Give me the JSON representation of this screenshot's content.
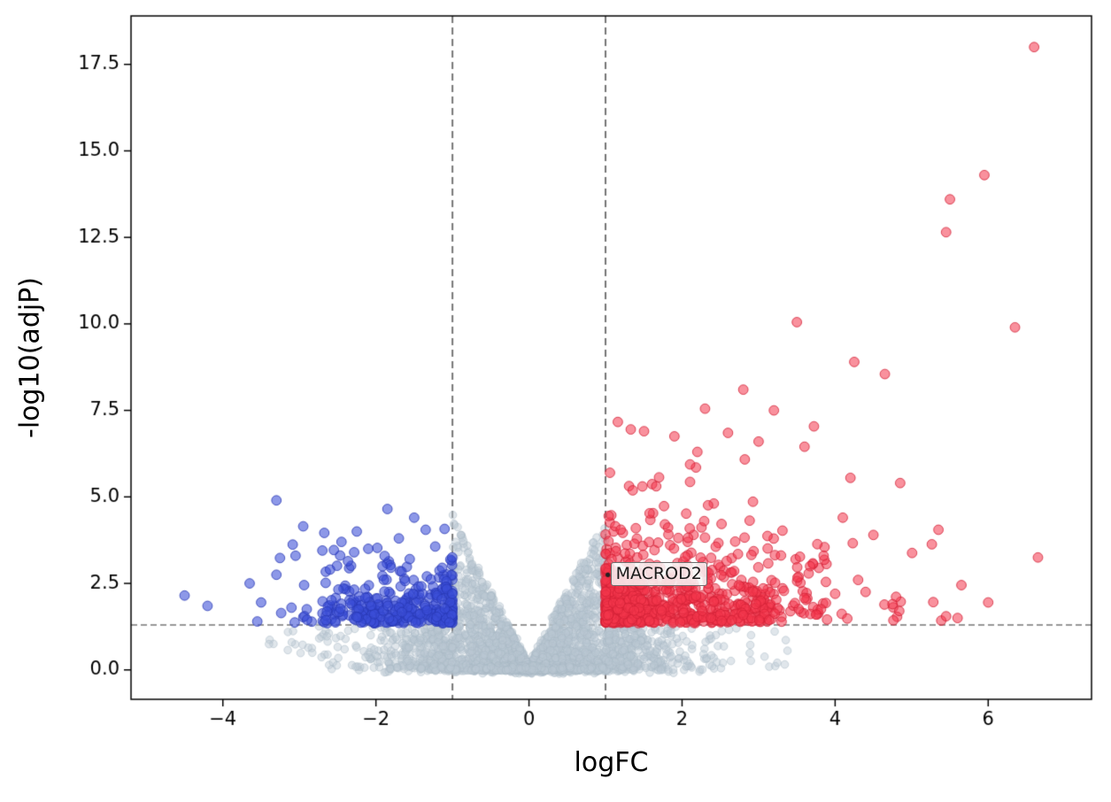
{
  "figure": {
    "background": "#ffffff"
  },
  "chart_data": {
    "type": "scatter",
    "subtype": "volcano-plot",
    "title": "",
    "xlabel": "logFC",
    "ylabel": "-log10(adjP)",
    "xlim": [
      -5.2,
      7.35
    ],
    "ylim": [
      -0.85,
      18.9
    ],
    "xtick_values": [
      -4,
      -2,
      0,
      2,
      4,
      6
    ],
    "xtick_labels": [
      "−4",
      "−2",
      "0",
      "2",
      "4",
      "6"
    ],
    "ytick_values": [
      0,
      2.5,
      5,
      7.5,
      10,
      12.5,
      15,
      17.5
    ],
    "ytick_labels": [
      "0.0",
      "2.5",
      "5.0",
      "7.5",
      "10.0",
      "12.5",
      "15.0",
      "17.5"
    ],
    "grid": false,
    "legend": null,
    "thresholds": {
      "logfc_lines": [
        -1,
        1
      ],
      "pvalue_line": 1.3
    },
    "annotation": {
      "label": "MACROD2",
      "x": 1.03,
      "y": 2.75
    },
    "style": {
      "up_fill": "rgba(244,54,76,0.55)",
      "up_stroke": "rgba(210,32,54,0.8)",
      "down_fill": "rgba(58,78,216,0.58)",
      "down_stroke": "rgba(40,56,180,0.8)",
      "ns_fill": "rgba(186,199,210,0.45)",
      "ns_stroke": "rgba(168,183,196,0.5)",
      "threshold_line_color": "#757575",
      "spine_color": "#000000",
      "marker_radius_sig": 5.4,
      "marker_radius_ns": 4.3
    },
    "generation": {
      "seed": 42,
      "clusters": [
        {
          "color": "ns",
          "kind": "volcano",
          "count": 2600,
          "sigma": 0.85,
          "xclip": 3.5
        },
        {
          "color": "ns",
          "kind": "baseline",
          "count": 420,
          "sigma": 0.5
        },
        {
          "color": "ns",
          "kind": "wings",
          "count": 150,
          "xmax": 3.4
        },
        {
          "color": "down",
          "kind": "band",
          "count": 330,
          "x0": -1,
          "dir": -1,
          "xspread": 1.7,
          "xpow": 2.0,
          "yscale": 0.5,
          "ycap": 3.6
        },
        {
          "color": "down",
          "kind": "band",
          "count": 48,
          "x0": -1,
          "dir": -1,
          "xspread": 2.4,
          "xpow": 1.0,
          "yscale": 0.95,
          "ycap": 4.6
        },
        {
          "color": "up",
          "kind": "band",
          "count": 640,
          "x0": 1,
          "dir": 1,
          "xspread": 2.2,
          "xpow": 2.0,
          "yscale": 0.75,
          "ycap": 5.6
        },
        {
          "color": "up",
          "kind": "band",
          "count": 150,
          "x0": 1,
          "dir": 1,
          "xspread": 2.9,
          "xpow": 1.2,
          "yscale": 1.5,
          "ycap": 7.3
        },
        {
          "color": "up",
          "kind": "band",
          "count": 32,
          "x0": 3.1,
          "dir": 1,
          "xspread": 2.3,
          "xpow": 1.0,
          "yscale": 1.1,
          "ycap": 5.8
        }
      ]
    },
    "up_points": [
      [
        6.6,
        18.0
      ],
      [
        5.95,
        14.3
      ],
      [
        5.5,
        13.6
      ],
      [
        5.45,
        12.65
      ],
      [
        6.35,
        9.9
      ],
      [
        3.5,
        10.05
      ],
      [
        4.25,
        8.9
      ],
      [
        4.65,
        8.55
      ],
      [
        2.8,
        8.1
      ],
      [
        2.3,
        7.55
      ],
      [
        3.2,
        7.5
      ],
      [
        1.33,
        6.95
      ],
      [
        2.6,
        6.85
      ],
      [
        1.9,
        6.75
      ],
      [
        3.0,
        6.6
      ],
      [
        3.6,
        6.45
      ],
      [
        2.2,
        6.3
      ],
      [
        4.2,
        5.55
      ],
      [
        4.85,
        5.4
      ],
      [
        5.35,
        4.05
      ],
      [
        4.5,
        3.9
      ],
      [
        4.3,
        2.6
      ],
      [
        6.65,
        3.25
      ],
      [
        5.65,
        2.45
      ],
      [
        6.0,
        1.95
      ],
      [
        5.45,
        1.55
      ],
      [
        5.6,
        1.5
      ],
      [
        4.75,
        1.9
      ],
      [
        4.1,
        4.4
      ],
      [
        3.85,
        3.3
      ],
      [
        4.0,
        2.2
      ],
      [
        3.75,
        1.6
      ]
    ],
    "down_points": [
      [
        -3.3,
        4.9
      ],
      [
        -1.85,
        4.65
      ],
      [
        -1.5,
        4.4
      ],
      [
        -2.95,
        4.15
      ],
      [
        -2.25,
        4.0
      ],
      [
        -1.35,
        4.05
      ],
      [
        -4.5,
        2.15
      ],
      [
        -4.2,
        1.85
      ],
      [
        -3.65,
        2.5
      ],
      [
        -3.5,
        1.95
      ],
      [
        -3.3,
        2.75
      ],
      [
        -3.05,
        3.3
      ],
      [
        -2.7,
        3.45
      ],
      [
        -2.45,
        3.7
      ],
      [
        -3.55,
        1.4
      ],
      [
        -2.9,
        1.45
      ],
      [
        -2.6,
        2.9
      ],
      [
        -2.1,
        3.5
      ],
      [
        -1.7,
        3.8
      ]
    ]
  }
}
